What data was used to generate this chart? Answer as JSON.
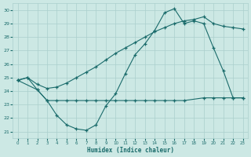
{
  "xlabel": "Humidex (Indice chaleur)",
  "xlim": [
    -0.5,
    23.5
  ],
  "ylim": [
    20.5,
    30.5
  ],
  "yticks": [
    21,
    22,
    23,
    24,
    25,
    26,
    27,
    28,
    29,
    30
  ],
  "xticks": [
    0,
    1,
    2,
    3,
    4,
    5,
    6,
    7,
    8,
    9,
    10,
    11,
    12,
    13,
    14,
    15,
    16,
    17,
    18,
    19,
    20,
    21,
    22,
    23
  ],
  "bg_color": "#cce8e4",
  "line_color": "#1a6b6b",
  "grid_color": "#aacfcc",
  "line1_x": [
    0,
    1,
    2,
    3,
    4,
    5,
    6,
    7,
    8,
    9,
    10,
    11,
    12,
    13,
    14,
    15,
    16,
    17,
    18,
    19,
    20,
    21,
    22,
    23
  ],
  "line1_y": [
    24.8,
    25.0,
    24.1,
    23.3,
    22.2,
    21.5,
    21.2,
    21.1,
    21.5,
    22.9,
    23.8,
    25.3,
    26.7,
    27.5,
    28.5,
    29.8,
    30.1,
    29.0,
    29.2,
    29.0,
    27.2,
    25.5,
    23.5,
    23.5
  ],
  "line2_x": [
    0,
    2,
    3,
    4,
    5,
    6,
    7,
    8,
    9,
    10,
    11,
    12,
    13,
    14,
    15,
    16,
    17,
    19,
    20,
    21,
    22,
    23
  ],
  "line2_y": [
    24.8,
    24.1,
    23.3,
    23.3,
    23.3,
    23.3,
    23.3,
    23.3,
    23.3,
    23.3,
    23.3,
    23.3,
    23.3,
    23.3,
    23.3,
    23.3,
    23.3,
    23.5,
    23.5,
    23.5,
    23.5,
    23.5
  ],
  "line3_x": [
    0,
    1,
    2,
    3,
    4,
    5,
    6,
    7,
    8,
    9,
    10,
    11,
    12,
    13,
    14,
    15,
    16,
    17,
    18,
    19,
    20,
    21,
    22,
    23
  ],
  "line3_y": [
    24.8,
    25.0,
    24.5,
    24.2,
    24.3,
    24.6,
    25.0,
    25.4,
    25.8,
    26.3,
    26.8,
    27.2,
    27.6,
    28.0,
    28.4,
    28.7,
    29.0,
    29.2,
    29.3,
    29.5,
    29.0,
    28.8,
    28.7,
    28.6
  ]
}
